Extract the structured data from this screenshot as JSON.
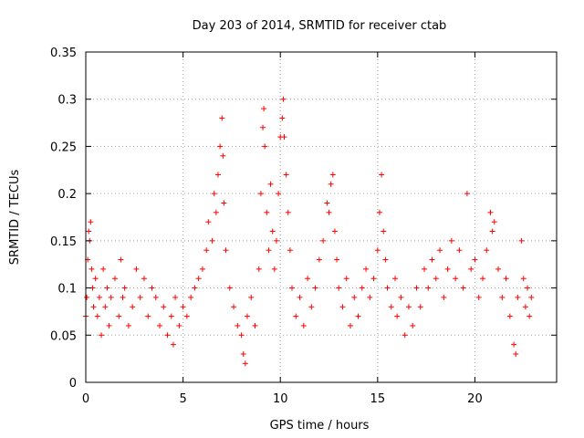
{
  "chart_data": {
    "type": "scatter",
    "title": "Day 203 of 2014, SRMTID for receiver ctab",
    "xlabel": "GPS time / hours",
    "ylabel": "SRMTID / TECUs",
    "xlim": [
      0,
      24.2
    ],
    "ylim": [
      0,
      0.35
    ],
    "xticks": [
      0,
      5,
      10,
      15,
      20
    ],
    "xtick_labels": [
      "0",
      "5",
      "10",
      "15",
      "20"
    ],
    "yticks": [
      0,
      0.05,
      0.1,
      0.15,
      0.2,
      0.25,
      0.3,
      0.35
    ],
    "ytick_labels": [
      "0",
      "0.05",
      "0.1",
      "0.15",
      "0.2",
      "0.25",
      "0.3",
      "0.35"
    ],
    "grid": true,
    "marker": "+",
    "color": "#ff0000",
    "series": [
      {
        "name": "SRMTID",
        "points": [
          [
            0.0,
            0.07
          ],
          [
            0.05,
            0.09
          ],
          [
            0.1,
            0.13
          ],
          [
            0.15,
            0.16
          ],
          [
            0.2,
            0.15
          ],
          [
            0.25,
            0.17
          ],
          [
            0.3,
            0.12
          ],
          [
            0.35,
            0.1
          ],
          [
            0.4,
            0.08
          ],
          [
            0.5,
            0.11
          ],
          [
            0.6,
            0.07
          ],
          [
            0.7,
            0.09
          ],
          [
            0.8,
            0.05
          ],
          [
            0.9,
            0.12
          ],
          [
            1.0,
            0.08
          ],
          [
            1.1,
            0.1
          ],
          [
            1.2,
            0.06
          ],
          [
            1.3,
            0.09
          ],
          [
            1.5,
            0.11
          ],
          [
            1.7,
            0.07
          ],
          [
            1.8,
            0.13
          ],
          [
            1.9,
            0.09
          ],
          [
            2.0,
            0.1
          ],
          [
            2.2,
            0.06
          ],
          [
            2.4,
            0.08
          ],
          [
            2.6,
            0.12
          ],
          [
            2.8,
            0.09
          ],
          [
            3.0,
            0.11
          ],
          [
            3.2,
            0.07
          ],
          [
            3.4,
            0.1
          ],
          [
            3.6,
            0.09
          ],
          [
            3.8,
            0.06
          ],
          [
            4.0,
            0.08
          ],
          [
            4.2,
            0.05
          ],
          [
            4.4,
            0.07
          ],
          [
            4.5,
            0.04
          ],
          [
            4.6,
            0.09
          ],
          [
            4.8,
            0.06
          ],
          [
            5.0,
            0.08
          ],
          [
            5.2,
            0.07
          ],
          [
            5.4,
            0.09
          ],
          [
            5.6,
            0.1
          ],
          [
            5.8,
            0.11
          ],
          [
            6.0,
            0.12
          ],
          [
            6.2,
            0.14
          ],
          [
            6.3,
            0.17
          ],
          [
            6.5,
            0.15
          ],
          [
            6.6,
            0.2
          ],
          [
            6.7,
            0.18
          ],
          [
            6.8,
            0.22
          ],
          [
            6.9,
            0.25
          ],
          [
            7.0,
            0.28
          ],
          [
            7.05,
            0.24
          ],
          [
            7.1,
            0.19
          ],
          [
            7.2,
            0.14
          ],
          [
            7.4,
            0.1
          ],
          [
            7.6,
            0.08
          ],
          [
            7.8,
            0.06
          ],
          [
            8.0,
            0.05
          ],
          [
            8.1,
            0.03
          ],
          [
            8.2,
            0.02
          ],
          [
            8.3,
            0.07
          ],
          [
            8.5,
            0.09
          ],
          [
            8.7,
            0.06
          ],
          [
            8.9,
            0.12
          ],
          [
            9.0,
            0.2
          ],
          [
            9.1,
            0.27
          ],
          [
            9.15,
            0.29
          ],
          [
            9.2,
            0.25
          ],
          [
            9.3,
            0.18
          ],
          [
            9.4,
            0.14
          ],
          [
            9.5,
            0.21
          ],
          [
            9.6,
            0.16
          ],
          [
            9.7,
            0.12
          ],
          [
            9.8,
            0.15
          ],
          [
            9.9,
            0.2
          ],
          [
            10.0,
            0.26
          ],
          [
            10.1,
            0.28
          ],
          [
            10.15,
            0.3
          ],
          [
            10.2,
            0.26
          ],
          [
            10.3,
            0.22
          ],
          [
            10.4,
            0.18
          ],
          [
            10.5,
            0.14
          ],
          [
            10.6,
            0.1
          ],
          [
            10.8,
            0.07
          ],
          [
            11.0,
            0.09
          ],
          [
            11.2,
            0.06
          ],
          [
            11.4,
            0.11
          ],
          [
            11.6,
            0.08
          ],
          [
            11.8,
            0.1
          ],
          [
            12.0,
            0.13
          ],
          [
            12.2,
            0.15
          ],
          [
            12.4,
            0.19
          ],
          [
            12.5,
            0.18
          ],
          [
            12.6,
            0.21
          ],
          [
            12.7,
            0.22
          ],
          [
            12.8,
            0.16
          ],
          [
            12.9,
            0.13
          ],
          [
            13.0,
            0.1
          ],
          [
            13.2,
            0.08
          ],
          [
            13.4,
            0.11
          ],
          [
            13.6,
            0.06
          ],
          [
            13.8,
            0.09
          ],
          [
            14.0,
            0.07
          ],
          [
            14.2,
            0.1
          ],
          [
            14.4,
            0.12
          ],
          [
            14.6,
            0.09
          ],
          [
            14.8,
            0.11
          ],
          [
            15.0,
            0.14
          ],
          [
            15.1,
            0.18
          ],
          [
            15.2,
            0.22
          ],
          [
            15.3,
            0.16
          ],
          [
            15.4,
            0.13
          ],
          [
            15.5,
            0.1
          ],
          [
            15.7,
            0.08
          ],
          [
            15.9,
            0.11
          ],
          [
            16.0,
            0.07
          ],
          [
            16.2,
            0.09
          ],
          [
            16.4,
            0.05
          ],
          [
            16.6,
            0.08
          ],
          [
            16.8,
            0.06
          ],
          [
            17.0,
            0.1
          ],
          [
            17.2,
            0.08
          ],
          [
            17.4,
            0.12
          ],
          [
            17.6,
            0.1
          ],
          [
            17.8,
            0.13
          ],
          [
            18.0,
            0.11
          ],
          [
            18.2,
            0.14
          ],
          [
            18.4,
            0.09
          ],
          [
            18.6,
            0.12
          ],
          [
            18.8,
            0.15
          ],
          [
            19.0,
            0.11
          ],
          [
            19.2,
            0.14
          ],
          [
            19.4,
            0.1
          ],
          [
            19.6,
            0.2
          ],
          [
            19.8,
            0.12
          ],
          [
            20.0,
            0.13
          ],
          [
            20.2,
            0.09
          ],
          [
            20.4,
            0.11
          ],
          [
            20.6,
            0.14
          ],
          [
            20.8,
            0.18
          ],
          [
            20.9,
            0.16
          ],
          [
            21.0,
            0.17
          ],
          [
            21.2,
            0.12
          ],
          [
            21.4,
            0.09
          ],
          [
            21.6,
            0.11
          ],
          [
            21.8,
            0.07
          ],
          [
            22.0,
            0.04
          ],
          [
            22.1,
            0.03
          ],
          [
            22.2,
            0.09
          ],
          [
            22.4,
            0.15
          ],
          [
            22.5,
            0.11
          ],
          [
            22.6,
            0.08
          ],
          [
            22.7,
            0.1
          ],
          [
            22.8,
            0.07
          ],
          [
            22.9,
            0.09
          ]
        ]
      }
    ]
  }
}
